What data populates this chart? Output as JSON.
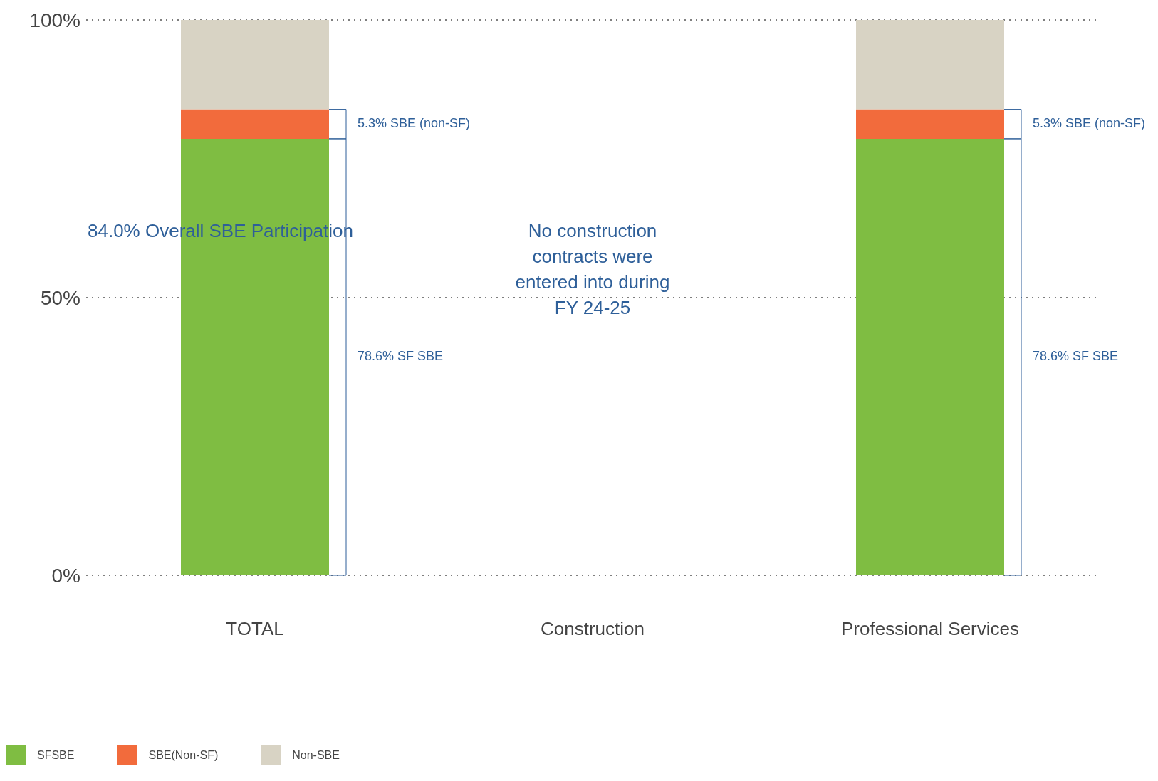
{
  "chart_data": {
    "type": "bar",
    "stacked": true,
    "categories": [
      "TOTAL",
      "Construction",
      "Professional Services"
    ],
    "series": [
      {
        "name": "SFSBE",
        "color": "#7fbd42",
        "values": [
          78.6,
          null,
          78.6
        ]
      },
      {
        "name": "SBE(Non-SF)",
        "color": "#f26b3c",
        "values": [
          5.3,
          null,
          5.3
        ]
      },
      {
        "name": "Non-SBE",
        "color": "#d8d3c4",
        "values": [
          16.1,
          null,
          16.1
        ]
      }
    ],
    "ylim": [
      0,
      100
    ],
    "yticks": [
      {
        "value": 0,
        "label": "0%"
      },
      {
        "value": 50,
        "label": "50%"
      },
      {
        "value": 100,
        "label": "100%"
      }
    ],
    "grid": "y",
    "legend": "bottom left",
    "annotations": [
      "84.0% Overall SBE Participation",
      "No construction contracts were entered into during FY 24-25",
      "5.3% SBE (non-SF)",
      "78.6% SF SBE",
      "5.3% SBE (non-SF)",
      "78.6% SF SBE"
    ]
  }
}
